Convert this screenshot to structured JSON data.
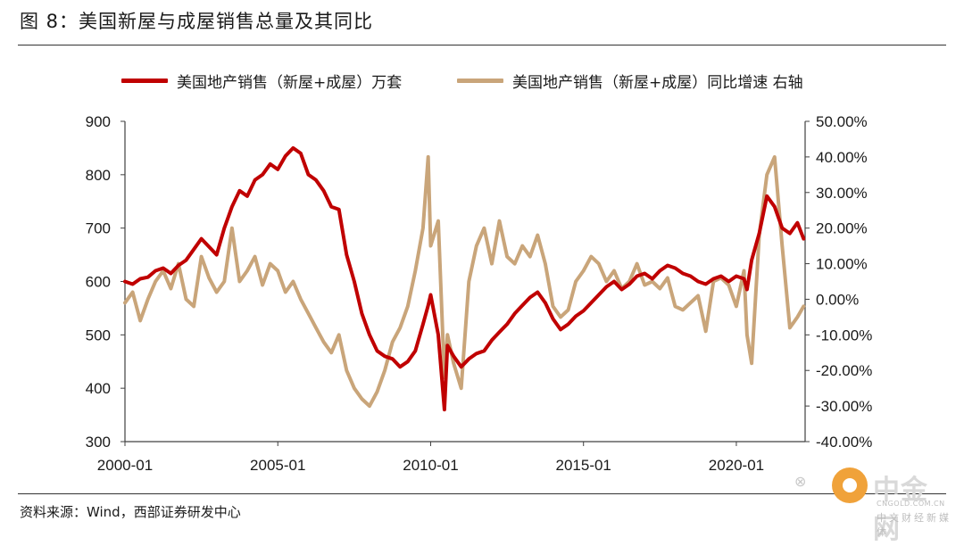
{
  "figure": {
    "title": "图 8：美国新屋与成屋销售总量及其同比",
    "source": "资料来源：Wind，西部证券研发中心"
  },
  "watermark": {
    "wechat_mark": "⊗",
    "name": "中金网",
    "domain": "CNGOLD.COM.CN",
    "tagline": "中文财经新媒体"
  },
  "chart_data": {
    "type": "line",
    "title": "",
    "xlabel": "",
    "ylabel_left": "",
    "ylabel_right": "",
    "x_ticks": [
      "2000-01",
      "2005-01",
      "2010-01",
      "2015-01",
      "2020-01"
    ],
    "x_range": [
      2000.0,
      2022.25
    ],
    "y_left_range": [
      300,
      900
    ],
    "y_left_ticks": [
      "300",
      "400",
      "500",
      "600",
      "700",
      "800",
      "900"
    ],
    "y_right_range": [
      -40,
      50
    ],
    "y_right_ticks": [
      "-40.00%",
      "-30.00%",
      "-20.00%",
      "-10.00%",
      "0.00%",
      "10.00%",
      "20.00%",
      "30.00%",
      "40.00%",
      "50.00%"
    ],
    "grid": false,
    "legend_position": "top",
    "series": [
      {
        "name": "美国地产销售（新屋+成屋）万套",
        "axis": "left",
        "color": "#c00000",
        "x": [
          2000.0,
          2000.25,
          2000.5,
          2000.75,
          2001.0,
          2001.25,
          2001.5,
          2001.75,
          2002.0,
          2002.25,
          2002.5,
          2002.75,
          2003.0,
          2003.25,
          2003.5,
          2003.75,
          2004.0,
          2004.25,
          2004.5,
          2004.75,
          2005.0,
          2005.25,
          2005.5,
          2005.75,
          2006.0,
          2006.25,
          2006.5,
          2006.75,
          2007.0,
          2007.25,
          2007.5,
          2007.75,
          2008.0,
          2008.25,
          2008.5,
          2008.75,
          2009.0,
          2009.25,
          2009.5,
          2009.75,
          2009.92,
          2010.0,
          2010.25,
          2010.45,
          2010.55,
          2010.75,
          2011.0,
          2011.25,
          2011.5,
          2011.75,
          2012.0,
          2012.25,
          2012.5,
          2012.75,
          2013.0,
          2013.25,
          2013.5,
          2013.75,
          2014.0,
          2014.25,
          2014.5,
          2014.75,
          2015.0,
          2015.25,
          2015.5,
          2015.75,
          2016.0,
          2016.25,
          2016.5,
          2016.75,
          2017.0,
          2017.25,
          2017.5,
          2017.75,
          2018.0,
          2018.25,
          2018.5,
          2018.75,
          2019.0,
          2019.25,
          2019.5,
          2019.75,
          2020.0,
          2020.25,
          2020.35,
          2020.5,
          2020.75,
          2021.0,
          2021.25,
          2021.5,
          2021.75,
          2022.0,
          2022.2
        ],
        "values": [
          600,
          595,
          605,
          608,
          620,
          625,
          615,
          630,
          640,
          660,
          680,
          665,
          650,
          700,
          740,
          770,
          760,
          790,
          800,
          820,
          810,
          835,
          850,
          840,
          800,
          790,
          770,
          740,
          735,
          650,
          600,
          540,
          500,
          470,
          460,
          455,
          440,
          450,
          470,
          520,
          555,
          575,
          500,
          360,
          480,
          460,
          440,
          455,
          465,
          470,
          490,
          505,
          520,
          540,
          555,
          570,
          580,
          560,
          530,
          510,
          520,
          535,
          545,
          560,
          575,
          590,
          600,
          585,
          595,
          610,
          615,
          605,
          620,
          630,
          625,
          615,
          610,
          600,
          595,
          605,
          610,
          600,
          610,
          605,
          585,
          640,
          690,
          760,
          740,
          700,
          690,
          710,
          680
        ]
      },
      {
        "name": "美国地产销售（新屋+成屋）同比增速 右轴",
        "axis": "right",
        "color": "#c9a57a",
        "x": [
          2000.0,
          2000.25,
          2000.5,
          2000.75,
          2001.0,
          2001.25,
          2001.5,
          2001.75,
          2002.0,
          2002.25,
          2002.5,
          2002.75,
          2003.0,
          2003.25,
          2003.5,
          2003.75,
          2004.0,
          2004.25,
          2004.5,
          2004.75,
          2005.0,
          2005.25,
          2005.5,
          2005.75,
          2006.0,
          2006.25,
          2006.5,
          2006.75,
          2007.0,
          2007.25,
          2007.5,
          2007.75,
          2008.0,
          2008.25,
          2008.5,
          2008.75,
          2009.0,
          2009.25,
          2009.5,
          2009.75,
          2009.92,
          2010.0,
          2010.25,
          2010.45,
          2010.55,
          2010.75,
          2011.0,
          2011.25,
          2011.5,
          2011.75,
          2012.0,
          2012.25,
          2012.5,
          2012.75,
          2013.0,
          2013.25,
          2013.5,
          2013.75,
          2014.0,
          2014.25,
          2014.5,
          2014.75,
          2015.0,
          2015.25,
          2015.5,
          2015.75,
          2016.0,
          2016.25,
          2016.5,
          2016.75,
          2017.0,
          2017.25,
          2017.5,
          2017.75,
          2018.0,
          2018.25,
          2018.5,
          2018.75,
          2019.0,
          2019.25,
          2019.5,
          2019.75,
          2020.0,
          2020.25,
          2020.35,
          2020.5,
          2020.75,
          2021.0,
          2021.25,
          2021.5,
          2021.75,
          2022.0,
          2022.2
        ],
        "values": [
          -1,
          2,
          -6,
          0,
          5,
          8,
          3,
          10,
          0,
          -2,
          12,
          6,
          2,
          5,
          20,
          5,
          8,
          12,
          4,
          10,
          8,
          2,
          5,
          0,
          -4,
          -8,
          -12,
          -15,
          -10,
          -20,
          -25,
          -28,
          -30,
          -26,
          -20,
          -12,
          -8,
          -2,
          8,
          20,
          40,
          15,
          22,
          -22,
          -10,
          -18,
          -25,
          5,
          15,
          20,
          10,
          22,
          12,
          10,
          15,
          12,
          18,
          10,
          -2,
          -5,
          -3,
          5,
          8,
          12,
          10,
          5,
          8,
          3,
          5,
          10,
          4,
          5,
          3,
          6,
          -2,
          -3,
          -1,
          1,
          -9,
          5,
          6,
          4,
          -2,
          8,
          -10,
          -18,
          18,
          35,
          40,
          15,
          -8,
          -5,
          -2
        ]
      }
    ]
  }
}
